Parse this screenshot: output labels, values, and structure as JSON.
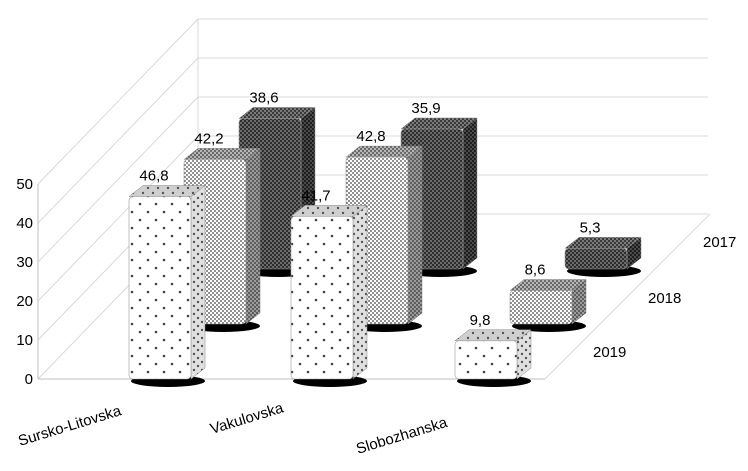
{
  "chart_data": {
    "type": "bar",
    "style": "3d-column",
    "categories": [
      "Sursko-Litovska",
      "Vakulovska",
      "Slobozhanska"
    ],
    "series": [
      {
        "name": "2017",
        "values": [
          38.6,
          35.9,
          5.3
        ],
        "pattern": "dark-checker"
      },
      {
        "name": "2018",
        "values": [
          42.2,
          42.8,
          8.6
        ],
        "pattern": "dense-dots"
      },
      {
        "name": "2019",
        "values": [
          46.8,
          41.7,
          9.8
        ],
        "pattern": "sparse-dots"
      }
    ],
    "yticks": [
      "0",
      "10",
      "20",
      "30",
      "40",
      "50"
    ],
    "ylim": [
      0,
      50
    ],
    "grid": true,
    "legend": "series labels at right end of each depth row",
    "colors": {
      "grid": "#d9d9d9",
      "axis": "#bfbfbf",
      "text": "#000000"
    }
  }
}
